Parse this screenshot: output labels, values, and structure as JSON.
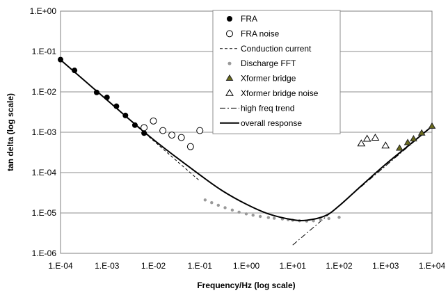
{
  "chart_data": {
    "type": "scatter",
    "xlabel": "Frequency/Hz (log scale)",
    "ylabel": "tan delta (log scale)",
    "x_scale": "log",
    "y_scale": "log",
    "xlim": [
      0.0001,
      10000
    ],
    "ylim": [
      1e-06,
      1
    ],
    "x_ticks": [
      "1.E-04",
      "1.E-03",
      "1.E-02",
      "1.E-01",
      "1.E+00",
      "1.E+01",
      "1.E+02",
      "1.E+03",
      "1.E+04"
    ],
    "y_ticks": [
      "1.E+00",
      "1.E-01",
      "1.E-02",
      "1.E-03",
      "1.E-04",
      "1.E-05",
      "1.E-06"
    ],
    "grid": "horizontal",
    "legend_position": "top-center",
    "series": [
      {
        "name": "FRA",
        "style": "filled-circle",
        "color": "#000000",
        "points": [
          [
            0.0001,
            0.063
          ],
          [
            0.0002,
            0.034
          ],
          [
            0.0006,
            0.0097
          ],
          [
            0.001,
            0.0073
          ],
          [
            0.0016,
            0.0044
          ],
          [
            0.0025,
            0.0026
          ],
          [
            0.004,
            0.0015
          ],
          [
            0.0063,
            0.00095
          ]
        ]
      },
      {
        "name": "FRA noise",
        "style": "open-circle",
        "color": "#000000",
        "points": [
          [
            0.0063,
            0.0013
          ],
          [
            0.01,
            0.0019
          ],
          [
            0.016,
            0.0011
          ],
          [
            0.025,
            0.00085
          ],
          [
            0.04,
            0.00074
          ],
          [
            0.063,
            0.00044
          ],
          [
            0.1,
            0.0011
          ]
        ]
      },
      {
        "name": "Conduction current",
        "style": "dashed-line",
        "color": "#000000",
        "points": [
          [
            0.0001,
            0.062
          ],
          [
            0.1,
            6.2e-05
          ]
        ]
      },
      {
        "name": "Discharge FFT",
        "style": "gray-dot",
        "color": "#999999",
        "points": [
          [
            0.13,
            2.1e-05
          ],
          [
            0.18,
            1.8e-05
          ],
          [
            0.25,
            1.55e-05
          ],
          [
            0.35,
            1.35e-05
          ],
          [
            0.5,
            1.18e-05
          ],
          [
            0.7,
            1.05e-05
          ],
          [
            1,
            9.5e-06
          ],
          [
            1.4,
            8.8e-06
          ],
          [
            2,
            8.2e-06
          ],
          [
            3,
            7.7e-06
          ],
          [
            4,
            7.4e-06
          ],
          [
            6,
            7.1e-06
          ],
          [
            8,
            6.8e-06
          ],
          [
            10,
            6.6e-06
          ],
          [
            14,
            6.4e-06
          ],
          [
            20,
            6.3e-06
          ],
          [
            28,
            6.4e-06
          ],
          [
            40,
            6.8e-06
          ],
          [
            60,
            7.3e-06
          ],
          [
            100,
            7.8e-06
          ]
        ]
      },
      {
        "name": "Xformer bridge",
        "style": "filled-triangle",
        "color": "#222222",
        "fill": "#6b6b1e",
        "points": [
          [
            2000,
            0.0004
          ],
          [
            3000,
            0.00055
          ],
          [
            4000,
            0.00068
          ],
          [
            6000,
            0.00095
          ],
          [
            10000,
            0.0014
          ]
        ]
      },
      {
        "name": "Xformer bridge noise",
        "style": "open-triangle",
        "color": "#000000",
        "points": [
          [
            300,
            0.00052
          ],
          [
            400,
            0.00068
          ],
          [
            600,
            0.00072
          ],
          [
            1000,
            0.00046
          ]
        ]
      },
      {
        "name": "high freq trend",
        "style": "dash-dot-line",
        "color": "#000000",
        "points": [
          [
            10,
            1.6e-06
          ],
          [
            10000,
            0.0014
          ]
        ]
      },
      {
        "name": "overall response",
        "style": "solid-line",
        "color": "#000000",
        "points": [
          [
            0.0001,
            0.062
          ],
          [
            0.001,
            0.0063
          ],
          [
            0.01,
            0.00066
          ],
          [
            0.1,
            8.8e-05
          ],
          [
            0.3,
            3.6e-05
          ],
          [
            1,
            1.65e-05
          ],
          [
            3,
            9.5e-06
          ],
          [
            10,
            6.8e-06
          ],
          [
            20,
            6.6e-06
          ],
          [
            50,
            8.5e-06
          ],
          [
            100,
            1.5e-05
          ],
          [
            300,
            4.7e-05
          ],
          [
            1000,
            0.00016
          ],
          [
            3000,
            0.00045
          ],
          [
            10000,
            0.0014
          ]
        ]
      }
    ]
  }
}
